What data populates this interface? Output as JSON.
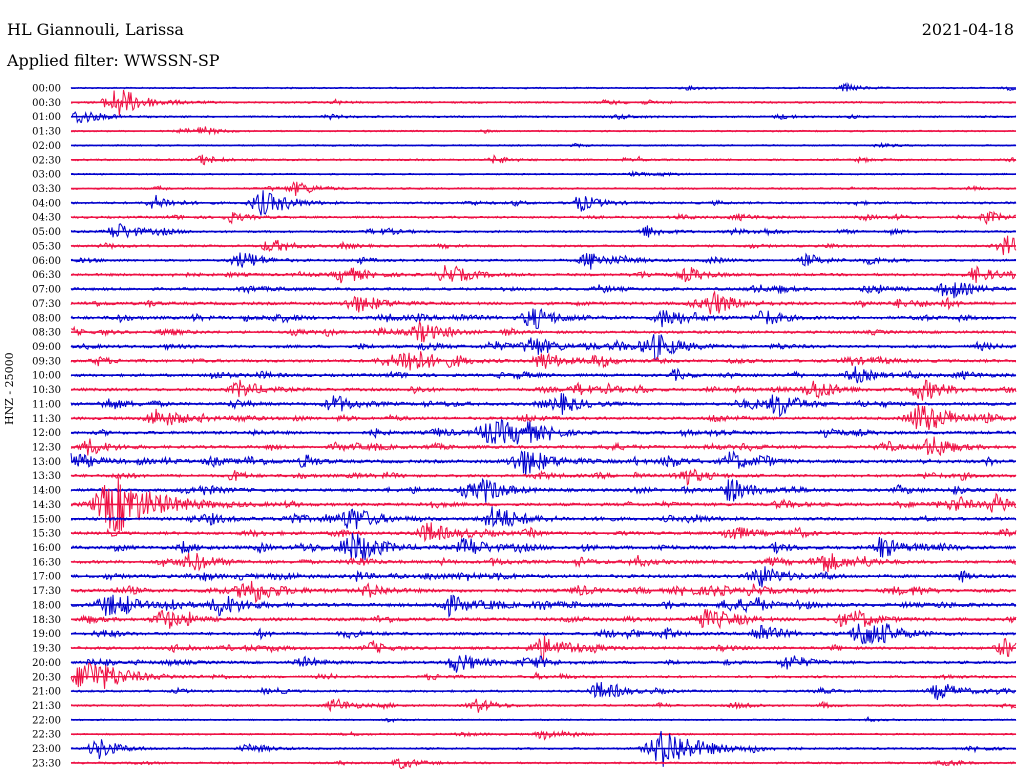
{
  "header": {
    "station": "HL Giannouli, Larissa",
    "date": "2021-04-18",
    "filter": "Applied filter: WWSSN-SP"
  },
  "chart_data": {
    "type": "line",
    "title": "HL Giannouli, Larissa",
    "ylabel": "HNZ - 25000",
    "trace_colors": [
      "#0000cc",
      "#ee1144"
    ],
    "grid": false,
    "row_times": [
      "00:00",
      "00:30",
      "01:00",
      "01:30",
      "02:00",
      "02:30",
      "03:00",
      "03:30",
      "04:00",
      "04:30",
      "05:00",
      "05:30",
      "06:00",
      "06:30",
      "07:00",
      "07:30",
      "08:00",
      "08:30",
      "09:00",
      "09:30",
      "10:00",
      "10:30",
      "11:00",
      "11:30",
      "12:00",
      "12:30",
      "13:00",
      "13:30",
      "14:00",
      "14:30",
      "15:00",
      "15:30",
      "16:00",
      "16:30",
      "17:00",
      "17:30",
      "18:00",
      "18:30",
      "19:00",
      "19:30",
      "20:00",
      "20:30",
      "21:00",
      "21:30",
      "22:00",
      "22:30",
      "23:00",
      "23:30"
    ],
    "row_activity": [
      0.1,
      0.2,
      0.2,
      0.1,
      0.1,
      0.2,
      0.1,
      0.2,
      0.3,
      0.3,
      0.3,
      0.3,
      0.35,
      0.45,
      0.5,
      0.55,
      0.6,
      0.5,
      0.55,
      0.55,
      0.5,
      0.55,
      0.55,
      0.5,
      0.55,
      0.55,
      0.65,
      0.5,
      0.55,
      0.6,
      0.6,
      0.55,
      0.65,
      0.6,
      0.65,
      0.7,
      0.7,
      0.6,
      0.5,
      0.5,
      0.45,
      0.35,
      0.3,
      0.25,
      0.1,
      0.15,
      0.25,
      0.2
    ],
    "bursts": [
      {
        "row": 0,
        "t": 0.82,
        "a": 4
      },
      {
        "row": 1,
        "t": 0.05,
        "a": 14
      },
      {
        "row": 2,
        "t": 0.01,
        "a": 8
      },
      {
        "row": 3,
        "t": 0.14,
        "a": 4
      },
      {
        "row": 5,
        "t": 0.14,
        "a": 5
      },
      {
        "row": 5,
        "t": 0.45,
        "a": 4
      },
      {
        "row": 7,
        "t": 0.24,
        "a": 7
      },
      {
        "row": 8,
        "t": 0.09,
        "a": 7
      },
      {
        "row": 8,
        "t": 0.2,
        "a": 9
      },
      {
        "row": 8,
        "t": 0.54,
        "a": 8
      },
      {
        "row": 9,
        "t": 0.17,
        "a": 5
      },
      {
        "row": 9,
        "t": 0.97,
        "a": 6
      },
      {
        "row": 10,
        "t": 0.05,
        "a": 9
      },
      {
        "row": 10,
        "t": 0.61,
        "a": 6
      },
      {
        "row": 11,
        "t": 0.21,
        "a": 6
      },
      {
        "row": 11,
        "t": 0.99,
        "a": 9
      },
      {
        "row": 12,
        "t": 0.18,
        "a": 7
      },
      {
        "row": 12,
        "t": 0.55,
        "a": 9
      },
      {
        "row": 12,
        "t": 0.78,
        "a": 6
      },
      {
        "row": 13,
        "t": 0.29,
        "a": 9
      },
      {
        "row": 13,
        "t": 0.4,
        "a": 10
      },
      {
        "row": 13,
        "t": 0.96,
        "a": 6
      },
      {
        "row": 14,
        "t": 0.93,
        "a": 10
      },
      {
        "row": 15,
        "t": 0.3,
        "a": 8
      },
      {
        "row": 15,
        "t": 0.68,
        "a": 11
      },
      {
        "row": 16,
        "t": 0.49,
        "a": 11
      },
      {
        "row": 16,
        "t": 0.63,
        "a": 10
      },
      {
        "row": 17,
        "t": 0.37,
        "a": 9
      },
      {
        "row": 18,
        "t": 0.49,
        "a": 10
      },
      {
        "row": 18,
        "t": 0.62,
        "a": 12
      },
      {
        "row": 19,
        "t": 0.36,
        "a": 12
      },
      {
        "row": 19,
        "t": 0.5,
        "a": 9
      },
      {
        "row": 20,
        "t": 0.83,
        "a": 8
      },
      {
        "row": 21,
        "t": 0.18,
        "a": 9
      },
      {
        "row": 21,
        "t": 0.79,
        "a": 9
      },
      {
        "row": 21,
        "t": 0.9,
        "a": 10
      },
      {
        "row": 22,
        "t": 0.28,
        "a": 9
      },
      {
        "row": 22,
        "t": 0.52,
        "a": 9
      },
      {
        "row": 22,
        "t": 0.75,
        "a": 10
      },
      {
        "row": 23,
        "t": 0.09,
        "a": 9
      },
      {
        "row": 23,
        "t": 0.9,
        "a": 14
      },
      {
        "row": 24,
        "t": 0.44,
        "a": 10
      },
      {
        "row": 24,
        "t": 0.48,
        "a": 10
      },
      {
        "row": 25,
        "t": 0.02,
        "a": 8
      },
      {
        "row": 25,
        "t": 0.91,
        "a": 9
      },
      {
        "row": 26,
        "t": 0.0,
        "a": 10
      },
      {
        "row": 26,
        "t": 0.48,
        "a": 14
      },
      {
        "row": 26,
        "t": 0.7,
        "a": 8
      },
      {
        "row": 27,
        "t": 0.65,
        "a": 9
      },
      {
        "row": 28,
        "t": 0.44,
        "a": 10
      },
      {
        "row": 28,
        "t": 0.7,
        "a": 10
      },
      {
        "row": 29,
        "t": 0.05,
        "a": 26
      },
      {
        "row": 29,
        "t": 0.98,
        "a": 9
      },
      {
        "row": 30,
        "t": 0.3,
        "a": 11
      },
      {
        "row": 30,
        "t": 0.45,
        "a": 13
      },
      {
        "row": 31,
        "t": 0.38,
        "a": 10
      },
      {
        "row": 31,
        "t": 0.7,
        "a": 8
      },
      {
        "row": 32,
        "t": 0.3,
        "a": 12
      },
      {
        "row": 32,
        "t": 0.42,
        "a": 10
      },
      {
        "row": 32,
        "t": 0.86,
        "a": 9
      },
      {
        "row": 33,
        "t": 0.13,
        "a": 9
      },
      {
        "row": 33,
        "t": 0.8,
        "a": 9
      },
      {
        "row": 34,
        "t": 0.73,
        "a": 11
      },
      {
        "row": 35,
        "t": 0.19,
        "a": 13
      },
      {
        "row": 36,
        "t": 0.04,
        "a": 11
      },
      {
        "row": 36,
        "t": 0.16,
        "a": 11
      },
      {
        "row": 36,
        "t": 0.4,
        "a": 10
      },
      {
        "row": 37,
        "t": 0.1,
        "a": 9
      },
      {
        "row": 37,
        "t": 0.67,
        "a": 10
      },
      {
        "row": 38,
        "t": 0.73,
        "a": 9
      },
      {
        "row": 38,
        "t": 0.84,
        "a": 14
      },
      {
        "row": 39,
        "t": 0.5,
        "a": 12
      },
      {
        "row": 39,
        "t": 0.99,
        "a": 9
      },
      {
        "row": 40,
        "t": 0.41,
        "a": 10
      },
      {
        "row": 40,
        "t": 0.76,
        "a": 8
      },
      {
        "row": 41,
        "t": 0.02,
        "a": 18
      },
      {
        "row": 42,
        "t": 0.56,
        "a": 9
      },
      {
        "row": 42,
        "t": 0.92,
        "a": 9
      },
      {
        "row": 43,
        "t": 0.28,
        "a": 7
      },
      {
        "row": 43,
        "t": 0.43,
        "a": 7
      },
      {
        "row": 45,
        "t": 0.5,
        "a": 5
      },
      {
        "row": 46,
        "t": 0.03,
        "a": 9
      },
      {
        "row": 46,
        "t": 0.63,
        "a": 20
      },
      {
        "row": 47,
        "t": 0.35,
        "a": 6
      }
    ]
  }
}
